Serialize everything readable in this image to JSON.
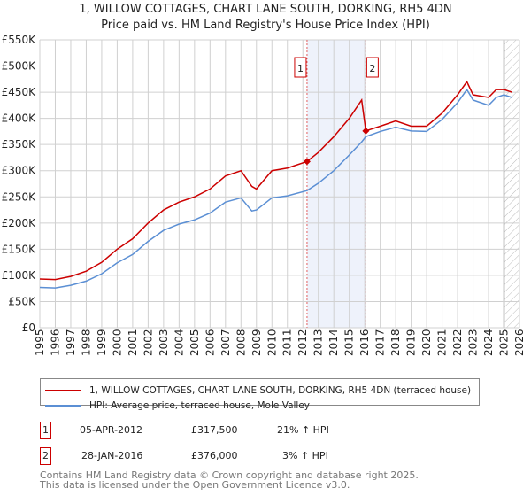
{
  "chart_data": {
    "type": "line",
    "title": "1, WILLOW COTTAGES, CHART LANE SOUTH, DORKING, RH5 4DN",
    "subtitle": "Price paid vs. HM Land Registry's House Price Index (HPI)",
    "xlim": [
      1995,
      2026
    ],
    "ylim": [
      0,
      550000
    ],
    "x_ticks": [
      "1995",
      "1996",
      "1997",
      "1998",
      "1999",
      "2000",
      "2001",
      "2002",
      "2003",
      "2004",
      "2005",
      "2006",
      "2007",
      "2008",
      "2009",
      "2010",
      "2011",
      "2012",
      "2013",
      "2014",
      "2015",
      "2016",
      "2017",
      "2018",
      "2019",
      "2020",
      "2021",
      "2022",
      "2023",
      "2024",
      "2025",
      "2026"
    ],
    "y_ticks": [
      {
        "v": 0,
        "label": "£0"
      },
      {
        "v": 50000,
        "label": "£50K"
      },
      {
        "v": 100000,
        "label": "£100K"
      },
      {
        "v": 150000,
        "label": "£150K"
      },
      {
        "v": 200000,
        "label": "£200K"
      },
      {
        "v": 250000,
        "label": "£250K"
      },
      {
        "v": 300000,
        "label": "£300K"
      },
      {
        "v": 350000,
        "label": "£350K"
      },
      {
        "v": 400000,
        "label": "£400K"
      },
      {
        "v": 450000,
        "label": "£450K"
      },
      {
        "v": 500000,
        "label": "£500K"
      },
      {
        "v": 550000,
        "label": "£550K"
      }
    ],
    "grid": true,
    "series": [
      {
        "name": "1, WILLOW COTTAGES, CHART LANE SOUTH, DORKING, RH5 4DN (terraced house)",
        "color": "#cc0000",
        "x": [
          1995,
          1996,
          1997,
          1998,
          1999,
          2000,
          2001,
          2002,
          2003,
          2004,
          2005,
          2006,
          2007,
          2008,
          2008.7,
          2009,
          2010,
          2011,
          2012.27,
          2013,
          2014,
          2015,
          2015.8,
          2016.07,
          2017,
          2018,
          2019,
          2020,
          2021,
          2022,
          2022.6,
          2023,
          2024,
          2024.5,
          2025,
          2025.5
        ],
        "y": [
          93000,
          92000,
          98000,
          108000,
          125000,
          150000,
          170000,
          200000,
          225000,
          240000,
          250000,
          265000,
          290000,
          300000,
          270000,
          265000,
          300000,
          305000,
          317500,
          335000,
          365000,
          400000,
          435000,
          376000,
          385000,
          395000,
          385000,
          385000,
          410000,
          445000,
          470000,
          445000,
          440000,
          455000,
          455000,
          450000
        ]
      },
      {
        "name": "HPI: Average price, terraced house, Mole Valley",
        "color": "#5b8fd4",
        "x": [
          1995,
          1996,
          1997,
          1998,
          1999,
          2000,
          2001,
          2002,
          2003,
          2004,
          2005,
          2006,
          2007,
          2008,
          2008.7,
          2009,
          2010,
          2011,
          2012.27,
          2013,
          2014,
          2015,
          2015.8,
          2016.07,
          2017,
          2018,
          2019,
          2020,
          2021,
          2022,
          2022.6,
          2023,
          2024,
          2024.5,
          2025,
          2025.5
        ],
        "y": [
          77000,
          76000,
          81000,
          89000,
          103000,
          124000,
          140000,
          165000,
          186000,
          198000,
          206000,
          219000,
          240000,
          248000,
          223000,
          225000,
          248000,
          252000,
          262000,
          276000,
          300000,
          330000,
          355000,
          365000,
          375000,
          383000,
          376000,
          375000,
          398000,
          430000,
          455000,
          435000,
          425000,
          440000,
          445000,
          440000
        ]
      }
    ],
    "sales": [
      {
        "n": "1",
        "x": 2012.27,
        "y": 317500
      },
      {
        "n": "2",
        "x": 2016.07,
        "y": 376000
      }
    ],
    "forecast_start": 2025.0
  },
  "legend": {
    "red": "1, WILLOW COTTAGES, CHART LANE SOUTH, DORKING, RH5 4DN (terraced house)",
    "blue": "HPI: Average price, terraced house, Mole Valley"
  },
  "table": [
    {
      "n": "1",
      "date": "05-APR-2012",
      "price": "£317,500",
      "hpi": "21% ↑ HPI"
    },
    {
      "n": "2",
      "date": "28-JAN-2016",
      "price": "£376,000",
      "hpi": "3% ↑ HPI"
    }
  ],
  "footer": [
    "Contains HM Land Registry data © Crown copyright and database right 2025.",
    "This data is licensed under the Open Government Licence v3.0."
  ]
}
